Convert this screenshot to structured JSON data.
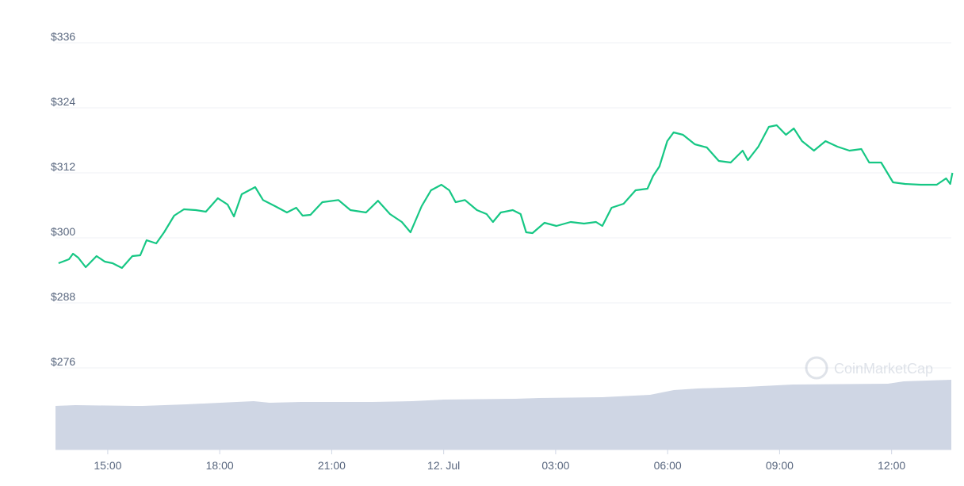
{
  "chart_data": {
    "type": "line",
    "x": [
      13.68,
      13.96,
      14.07,
      14.21,
      14.41,
      14.7,
      14.92,
      15.13,
      15.38,
      15.66,
      15.87,
      16.04,
      16.3,
      16.51,
      16.78,
      17.04,
      17.36,
      17.63,
      17.95,
      18.21,
      18.38,
      18.59,
      18.95,
      19.16,
      19.48,
      19.8,
      20.05,
      20.22,
      20.43,
      20.75,
      21.18,
      21.5,
      21.92,
      22.24,
      22.56,
      22.88,
      23.11,
      23.41,
      23.66,
      23.94,
      24.15,
      24.32,
      24.57,
      24.89,
      25.15,
      25.32,
      25.53,
      25.85,
      26.06,
      26.21,
      26.38,
      26.7,
      27.02,
      27.4,
      27.76,
      28.08,
      28.25,
      28.5,
      28.82,
      29.14,
      29.46,
      29.61,
      29.78,
      29.99,
      30.16,
      30.41,
      30.73,
      31.05,
      31.37,
      31.69,
      32.01,
      32.15,
      32.43,
      32.71,
      32.92,
      33.17,
      33.38,
      33.6,
      33.92,
      34.23,
      34.55,
      34.87,
      35.19,
      35.4,
      35.72,
      36.04,
      36.36,
      36.78,
      37.21,
      37.46,
      37.57,
      37.63
    ],
    "series": [
      {
        "color": "#16c784",
        "values": [
          295.32,
          296.05,
          297.07,
          296.34,
          294.59,
          296.63,
          295.61,
          295.32,
          294.44,
          296.63,
          296.78,
          299.56,
          298.98,
          301.02,
          304.1,
          305.27,
          305.12,
          304.83,
          307.32,
          306.15,
          303.95,
          308.05,
          309.37,
          306.98,
          305.85,
          304.68,
          305.56,
          304.1,
          304.24,
          306.59,
          306.98,
          305.12,
          304.68,
          306.85,
          304.39,
          302.93,
          301.02,
          305.85,
          308.78,
          309.81,
          308.78,
          306.59,
          306.98,
          305.12,
          304.39,
          302.93,
          304.68,
          305.12,
          304.39,
          301.02,
          300.88,
          302.78,
          302.2,
          302.93,
          302.63,
          302.93,
          302.2,
          305.56,
          306.29,
          308.78,
          309.07,
          311.41,
          313.17,
          317.85,
          319.46,
          319.02,
          317.27,
          316.68,
          314.2,
          313.9,
          316.1,
          314.34,
          316.83,
          320.49,
          320.78,
          319.02,
          320.2,
          317.85,
          316.1,
          317.85,
          316.83,
          316.1,
          316.39,
          313.9,
          313.9,
          310.24,
          309.95,
          309.81,
          309.81,
          310.98,
          309.95,
          312.0
        ]
      }
    ],
    "xlim": [
      13.6,
      37.6
    ],
    "xticks": [
      {
        "value": 15,
        "label": "15:00"
      },
      {
        "value": 18,
        "label": "18:00"
      },
      {
        "value": 21,
        "label": "21:00"
      },
      {
        "value": 24,
        "label": "12. Jul"
      },
      {
        "value": 27,
        "label": "03:00"
      },
      {
        "value": 30,
        "label": "06:00"
      },
      {
        "value": 33,
        "label": "09:00"
      },
      {
        "value": 36,
        "label": "12:00"
      }
    ],
    "ylim": [
      276,
      336
    ],
    "yticks": [
      {
        "value": 276,
        "label": "$276"
      },
      {
        "value": 288,
        "label": "$288"
      },
      {
        "value": 300,
        "label": "$300"
      },
      {
        "value": 312,
        "label": "$312"
      },
      {
        "value": 324,
        "label": "$324"
      },
      {
        "value": 336,
        "label": "$336"
      }
    ],
    "grid": true,
    "watermark": "CoinMarketCap"
  }
}
